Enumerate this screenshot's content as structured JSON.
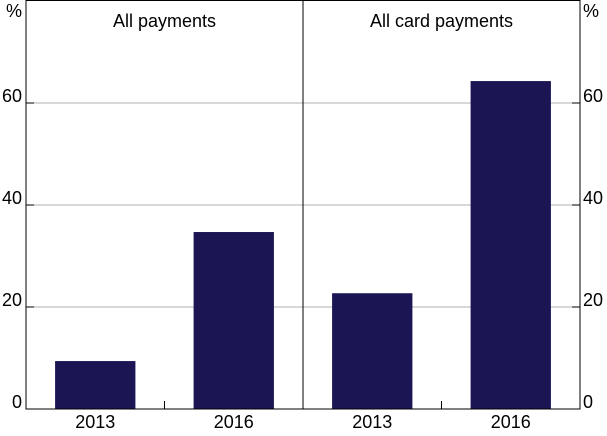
{
  "chart_data": [
    {
      "type": "bar",
      "title": "All payments",
      "y_label": "%",
      "categories": [
        "2013",
        "2016"
      ],
      "values": [
        9.4,
        34.7
      ],
      "color": "#1b1554",
      "ylim": [
        0,
        80
      ],
      "yticks": [
        0,
        20,
        40,
        60
      ],
      "grid": true,
      "axis_side": "left"
    },
    {
      "type": "bar",
      "title": "All card payments",
      "y_label": "%",
      "categories": [
        "2013",
        "2016"
      ],
      "values": [
        22.7,
        64.3
      ],
      "color": "#1b1554",
      "ylim": [
        0,
        80
      ],
      "yticks": [
        0,
        20,
        40,
        60
      ],
      "grid": true,
      "axis_side": "right"
    }
  ]
}
